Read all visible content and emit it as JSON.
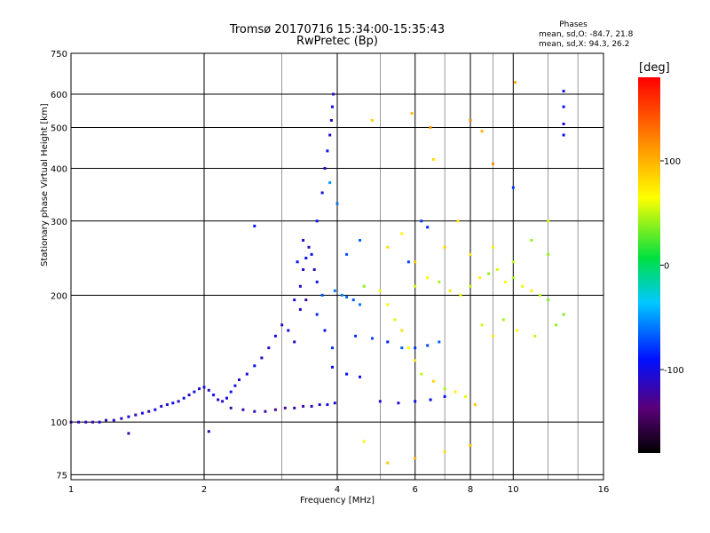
{
  "chart_data": {
    "type": "scatter",
    "title": "Tromsø 20170716 15:34:00-15:35:43",
    "subtitle": "RwPretec (Bp)",
    "xlabel": "Frequency [MHz]",
    "ylabel": "Stationary phase Virtual Height [km]",
    "xscale": "log",
    "yscale": "log",
    "xlim": [
      1,
      16
    ],
    "ylim": [
      73,
      750
    ],
    "xticks": [
      "1",
      "2",
      "4",
      "6",
      "8",
      "10",
      "16"
    ],
    "xtick_values": [
      1,
      2,
      4,
      6,
      8,
      10,
      16
    ],
    "yticks": [
      "75",
      "100",
      "200",
      "300",
      "400",
      "500",
      "600",
      "750"
    ],
    "ytick_values": [
      75,
      100,
      200,
      300,
      400,
      500,
      600,
      750
    ],
    "grid": true,
    "phase_stats": {
      "header": "Phases",
      "o": "mean, sd,O:  -84.7, 21.8",
      "x": "mean, sd,X:  94.3, 26.2"
    },
    "colorbar": {
      "unit": "[deg]",
      "min": -180,
      "max": 180,
      "ticks": [
        "100",
        "0",
        "-100"
      ],
      "tick_values": [
        100,
        0,
        -100
      ]
    },
    "series": [
      {
        "points": [
          [
            1.0,
            100,
            -120
          ],
          [
            1.04,
            100,
            -115
          ],
          [
            1.08,
            100,
            -110
          ],
          [
            1.12,
            100,
            -120
          ],
          [
            1.16,
            100,
            -105
          ],
          [
            1.2,
            101,
            -118
          ],
          [
            1.25,
            101,
            -108
          ],
          [
            1.3,
            102,
            -112
          ],
          [
            1.35,
            103,
            -100
          ],
          [
            1.4,
            104,
            -110
          ],
          [
            1.45,
            105,
            -102
          ],
          [
            1.5,
            106,
            -115
          ],
          [
            1.55,
            107,
            -98
          ],
          [
            1.6,
            109,
            -110
          ],
          [
            1.65,
            110,
            -104
          ],
          [
            1.7,
            111,
            -95
          ],
          [
            1.75,
            112,
            -108
          ],
          [
            1.8,
            114,
            -100
          ],
          [
            1.85,
            116,
            -112
          ],
          [
            1.9,
            118,
            -96
          ],
          [
            1.95,
            120,
            -105
          ],
          [
            2.0,
            121,
            -100
          ],
          [
            2.05,
            119,
            -110
          ],
          [
            2.1,
            116,
            -95
          ],
          [
            2.15,
            113,
            -108
          ],
          [
            2.2,
            112,
            -115
          ],
          [
            2.25,
            114,
            -100
          ],
          [
            2.3,
            118,
            -92
          ],
          [
            2.35,
            122,
            -98
          ],
          [
            2.4,
            126,
            -110
          ],
          [
            2.5,
            130,
            -100
          ],
          [
            2.6,
            136,
            -95
          ],
          [
            2.7,
            142,
            -115
          ],
          [
            2.8,
            150,
            -105
          ],
          [
            2.9,
            160,
            -98
          ],
          [
            3.0,
            170,
            -112
          ],
          [
            3.1,
            165,
            -100
          ],
          [
            3.2,
            155,
            -115
          ],
          [
            2.3,
            108,
            -120
          ],
          [
            2.45,
            107,
            -118
          ],
          [
            2.6,
            106,
            -112
          ],
          [
            2.75,
            106,
            -120
          ],
          [
            2.9,
            107,
            -130
          ],
          [
            3.05,
            108,
            -125
          ],
          [
            3.2,
            108,
            -118
          ],
          [
            3.35,
            109,
            -122
          ],
          [
            3.5,
            109,
            -115
          ],
          [
            3.65,
            110,
            -110
          ],
          [
            3.8,
            110,
            -100
          ],
          [
            3.95,
            111,
            -105
          ],
          [
            3.3,
            210,
            -110
          ],
          [
            3.35,
            230,
            -105
          ],
          [
            3.4,
            245,
            -95
          ],
          [
            3.45,
            260,
            -115
          ],
          [
            3.5,
            250,
            -100
          ],
          [
            3.55,
            230,
            -108
          ],
          [
            3.6,
            215,
            -96
          ],
          [
            3.4,
            195,
            -120
          ],
          [
            3.3,
            185,
            -110
          ],
          [
            3.2,
            195,
            -100
          ],
          [
            3.25,
            240,
            -90
          ],
          [
            3.35,
            270,
            -105
          ],
          [
            3.6,
            300,
            -92
          ],
          [
            3.7,
            350,
            -100
          ],
          [
            3.75,
            400,
            -110
          ],
          [
            3.8,
            440,
            -95
          ],
          [
            3.85,
            480,
            -105
          ],
          [
            3.88,
            520,
            -112
          ],
          [
            3.9,
            560,
            -100
          ],
          [
            3.92,
            600,
            -108
          ],
          [
            3.6,
            180,
            -85
          ],
          [
            3.75,
            165,
            -90
          ],
          [
            3.9,
            150,
            -80
          ],
          [
            3.7,
            200,
            -70
          ],
          [
            3.95,
            205,
            -60
          ],
          [
            4.1,
            200,
            -55
          ],
          [
            4.2,
            198,
            -65
          ],
          [
            4.35,
            195,
            -70
          ],
          [
            4.5,
            190,
            -60
          ],
          [
            4.4,
            160,
            -80
          ],
          [
            4.8,
            158,
            -75
          ],
          [
            5.2,
            155,
            -85
          ],
          [
            5.6,
            150,
            -70
          ],
          [
            6.0,
            150,
            -80
          ],
          [
            6.4,
            152,
            -75
          ],
          [
            6.8,
            155,
            -65
          ],
          [
            3.9,
            135,
            -95
          ],
          [
            4.2,
            130,
            -90
          ],
          [
            4.5,
            128,
            -100
          ],
          [
            5.0,
            112,
            -110
          ],
          [
            5.5,
            111,
            -105
          ],
          [
            6.0,
            112,
            -100
          ],
          [
            6.5,
            113,
            -95
          ],
          [
            7.0,
            115,
            -90
          ],
          [
            6.2,
            300,
            -80
          ],
          [
            6.4,
            290,
            -85
          ],
          [
            5.8,
            240,
            -75
          ],
          [
            4.2,
            250,
            -70
          ],
          [
            4.5,
            270,
            -65
          ],
          [
            4.0,
            330,
            -60
          ],
          [
            3.85,
            370,
            -50
          ],
          [
            4.6,
            210,
            40
          ],
          [
            5.0,
            205,
            60
          ],
          [
            5.2,
            190,
            70
          ],
          [
            5.4,
            175,
            55
          ],
          [
            5.6,
            165,
            80
          ],
          [
            5.8,
            150,
            65
          ],
          [
            6.0,
            140,
            75
          ],
          [
            6.2,
            130,
            50
          ],
          [
            6.6,
            125,
            85
          ],
          [
            7.0,
            120,
            45
          ],
          [
            7.4,
            118,
            70
          ],
          [
            7.8,
            115,
            60
          ],
          [
            8.2,
            110,
            90
          ],
          [
            6.0,
            210,
            55
          ],
          [
            6.4,
            220,
            65
          ],
          [
            6.8,
            215,
            45
          ],
          [
            7.2,
            205,
            75
          ],
          [
            7.6,
            200,
            60
          ],
          [
            8.0,
            210,
            50
          ],
          [
            8.4,
            220,
            70
          ],
          [
            8.8,
            225,
            40
          ],
          [
            9.2,
            230,
            55
          ],
          [
            9.6,
            215,
            65
          ],
          [
            10.0,
            220,
            45
          ],
          [
            10.5,
            210,
            60
          ],
          [
            11.0,
            205,
            75
          ],
          [
            11.5,
            200,
            50
          ],
          [
            12.0,
            195,
            35
          ],
          [
            5.2,
            260,
            80
          ],
          [
            5.6,
            280,
            70
          ],
          [
            6.0,
            240,
            90
          ],
          [
            7.0,
            260,
            85
          ],
          [
            8.0,
            250,
            75
          ],
          [
            9.0,
            260,
            60
          ],
          [
            10.0,
            240,
            50
          ],
          [
            11.0,
            270,
            40
          ],
          [
            8.5,
            170,
            55
          ],
          [
            9.0,
            160,
            70
          ],
          [
            9.5,
            175,
            45
          ],
          [
            10.2,
            165,
            65
          ],
          [
            11.2,
            160,
            50
          ],
          [
            12.5,
            170,
            40
          ],
          [
            13.0,
            180,
            35
          ],
          [
            6.5,
            500,
            110
          ],
          [
            8.0,
            520,
            120
          ],
          [
            8.5,
            490,
            100
          ],
          [
            9.0,
            410,
            115
          ],
          [
            10.1,
            640,
            105
          ],
          [
            5.2,
            80,
            90
          ],
          [
            6.0,
            82,
            100
          ],
          [
            7.0,
            85,
            80
          ],
          [
            8.0,
            88,
            95
          ],
          [
            4.6,
            90,
            70
          ],
          [
            10.0,
            360,
            -80
          ],
          [
            13.0,
            610,
            -100
          ],
          [
            13.0,
            560,
            -95
          ],
          [
            13.0,
            510,
            -110
          ],
          [
            13.0,
            480,
            -90
          ],
          [
            2.6,
            292,
            -90
          ],
          [
            2.05,
            95,
            -110
          ],
          [
            1.35,
            94,
            -120
          ],
          [
            4.8,
            520,
            85
          ],
          [
            5.9,
            540,
            95
          ],
          [
            6.6,
            420,
            80
          ],
          [
            7.5,
            300,
            75
          ],
          [
            12.0,
            300,
            55
          ],
          [
            12.0,
            250,
            40
          ]
        ]
      }
    ]
  }
}
